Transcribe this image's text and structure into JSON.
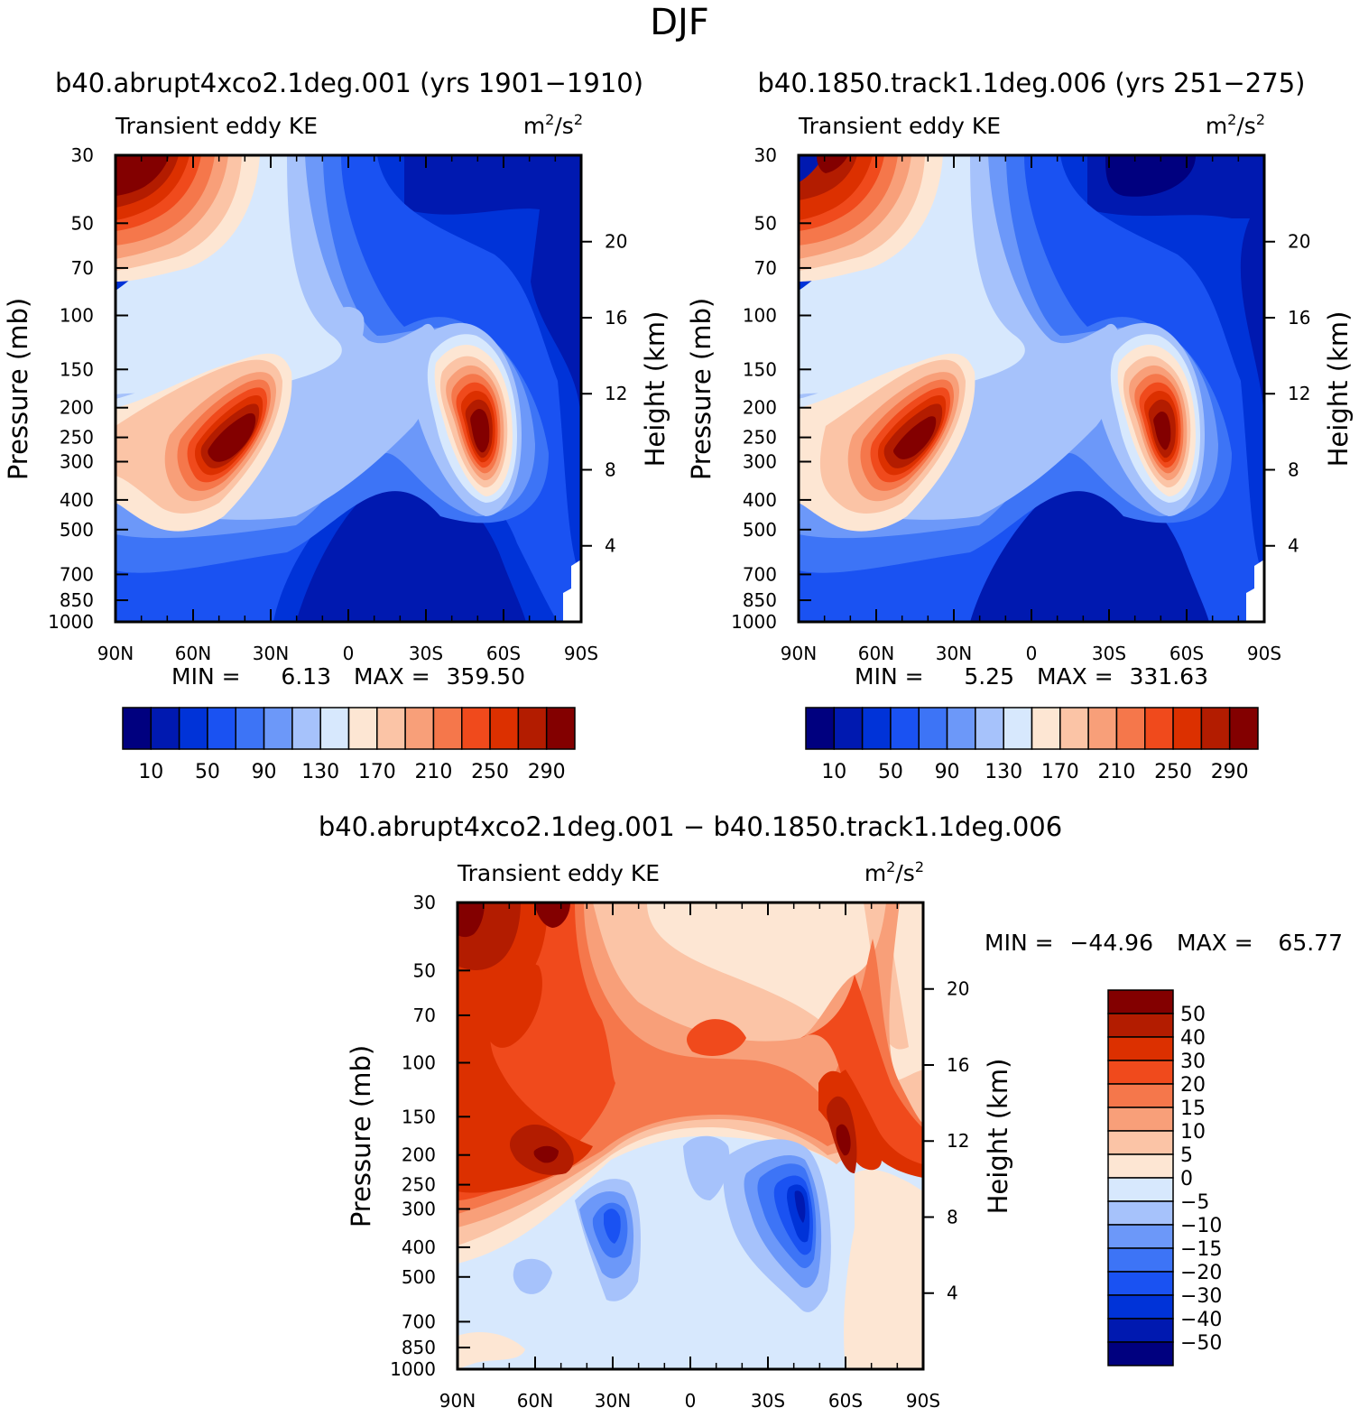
{
  "colors": {
    "abs_palette": [
      "#00007f",
      "#0019b0",
      "#0033d8",
      "#1a52f2",
      "#3d74f6",
      "#6c98f9",
      "#a6c2fb",
      "#d7e8fd",
      "#fde6d3",
      "#fbc4a6",
      "#f89f79",
      "#f5774b",
      "#f04a1c",
      "#dc3000",
      "#b31c00",
      "#830000"
    ],
    "diff_palette": [
      "#00007f",
      "#0019b0",
      "#0033d8",
      "#1a52f2",
      "#3d74f6",
      "#6c98f9",
      "#a6c2fb",
      "#d7e8fd",
      "#fde6d3",
      "#fbc4a6",
      "#f89f79",
      "#f5774b",
      "#f04a1c",
      "#dc3000",
      "#b31c00",
      "#830000"
    ]
  },
  "chart_data": {
    "type": "contour",
    "super_title": "DJF",
    "common": {
      "left_label": "Transient eddy KE",
      "units_base": "m",
      "units_sup1": "2",
      "units_mid": "/s",
      "units_sup2": "2",
      "ylabel": "Pressure (mb)",
      "y2label": "Height (km)",
      "x_ticks": [
        "90N",
        "60N",
        "30N",
        "0",
        "30S",
        "60S",
        "90S"
      ],
      "pressure_ticks": [
        "30",
        "50",
        "70",
        "100",
        "150",
        "200",
        "250",
        "300",
        "400",
        "500",
        "700",
        "850",
        "1000"
      ],
      "height_ticks": [
        "20",
        "16",
        "12",
        "8",
        "4"
      ],
      "min_label": "MIN =",
      "max_label": "MAX ="
    },
    "panels": [
      {
        "title": "b40.abrupt4xco2.1deg.001 (yrs 1901−1910)",
        "min": "6.13",
        "max": "359.50",
        "colorbar_labels": [
          "10",
          "50",
          "90",
          "130",
          "170",
          "210",
          "250",
          "290"
        ]
      },
      {
        "title": "b40.1850.track1.1deg.006 (yrs 251−275)",
        "min": "5.25",
        "max": "331.63",
        "colorbar_labels": [
          "10",
          "50",
          "90",
          "130",
          "170",
          "210",
          "250",
          "290"
        ]
      },
      {
        "title": "b40.abrupt4xco2.1deg.001 − b40.1850.track1.1deg.006",
        "min": "−44.96",
        "max": "65.77",
        "colorbar_labels": [
          "50",
          "40",
          "30",
          "20",
          "15",
          "10",
          "5",
          "0",
          "−5",
          "−10",
          "−15",
          "−20",
          "−30",
          "−40",
          "−50"
        ]
      }
    ]
  }
}
